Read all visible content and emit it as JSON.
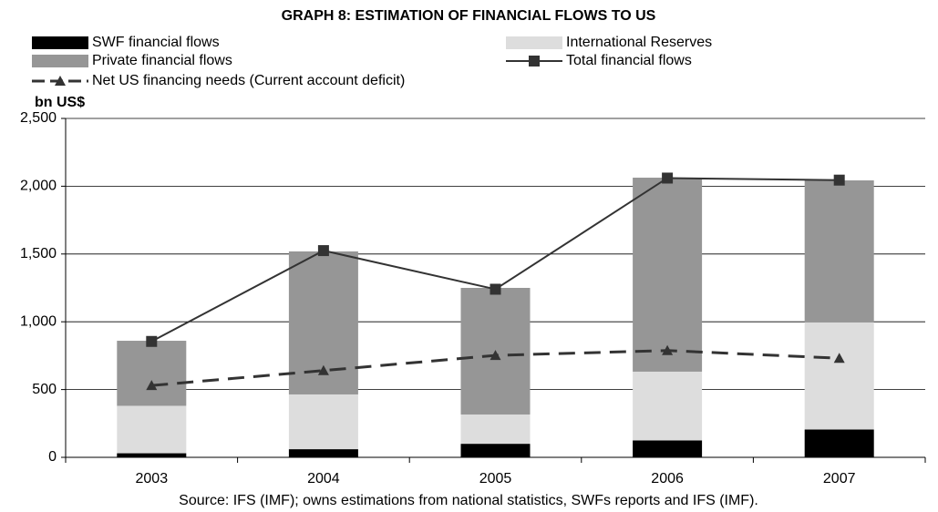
{
  "chart_data": {
    "type": "bar",
    "title": "GRAPH 8: ESTIMATION OF FINANCIAL FLOWS TO US",
    "y_label": "bn US$",
    "source": "Source: IFS (IMF); owns estimations from national statistics, SWFs reports and IFS (IMF).",
    "categories": [
      "2003",
      "2004",
      "2005",
      "2006",
      "2007"
    ],
    "series": [
      {
        "name": "SWF financial flows",
        "type": "bar",
        "color": "#000000",
        "values": [
          30,
          60,
          100,
          125,
          205
        ]
      },
      {
        "name": "International Reserves",
        "type": "bar",
        "color": "#dddddd",
        "values": [
          350,
          404,
          216,
          507,
          790
        ]
      },
      {
        "name": "Private financial flows",
        "type": "bar",
        "color": "#969696",
        "values": [
          480,
          1055,
          934,
          1431,
          1048
        ]
      },
      {
        "name": "Total financial flows",
        "type": "line",
        "color": "#333333",
        "marker": "square",
        "values": [
          855,
          1525,
          1240,
          2060,
          2045
        ]
      },
      {
        "name": "Net US financing needs (Current account deficit)",
        "type": "line",
        "color": "#333333",
        "marker": "triangle",
        "dashed": true,
        "values": [
          530,
          640,
          752,
          788,
          731
        ]
      }
    ],
    "ylim": [
      0,
      2500
    ],
    "yticks": [
      0,
      500,
      {
        "value": 1000,
        "label": "1,000"
      },
      {
        "value": 1500,
        "label": "1,500"
      },
      {
        "value": 2000,
        "label": "2,000"
      },
      {
        "value": 2500,
        "label": "2,500"
      }
    ],
    "grid": true
  }
}
